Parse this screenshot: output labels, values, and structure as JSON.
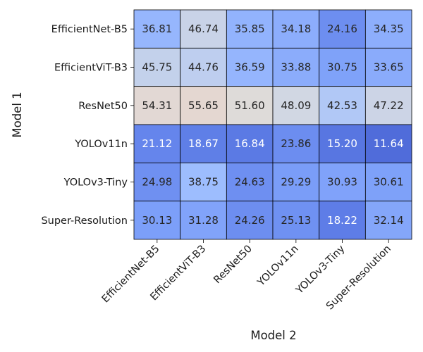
{
  "chart_data": {
    "type": "heatmap",
    "title": "",
    "xlabel": "Model 2",
    "ylabel": "Model 1",
    "x_categories": [
      "EfficientNet-B5",
      "EfficientViT-B3",
      "ResNet50",
      "YOLOv11n",
      "YOLOv3-Tiny",
      "Super-Resolution"
    ],
    "y_categories": [
      "EfficientNet-B5",
      "EfficientViT-B3",
      "ResNet50",
      "YOLOv11n",
      "YOLOv3-Tiny",
      "Super-Resolution"
    ],
    "values": [
      [
        36.81,
        46.74,
        35.85,
        34.18,
        24.16,
        34.35
      ],
      [
        45.75,
        44.76,
        36.59,
        33.88,
        30.75,
        33.65
      ],
      [
        54.31,
        55.65,
        51.6,
        48.09,
        42.53,
        47.22
      ],
      [
        21.12,
        18.67,
        16.84,
        23.86,
        15.2,
        11.64
      ],
      [
        24.98,
        38.75,
        24.63,
        29.29,
        30.93,
        30.61
      ],
      [
        30.13,
        31.28,
        24.26,
        25.13,
        18.22,
        32.14
      ]
    ],
    "value_format": "2-decimals",
    "colormap": "coolwarm",
    "vrange": [
      0,
      100
    ],
    "colorbar": false,
    "grid": true
  }
}
